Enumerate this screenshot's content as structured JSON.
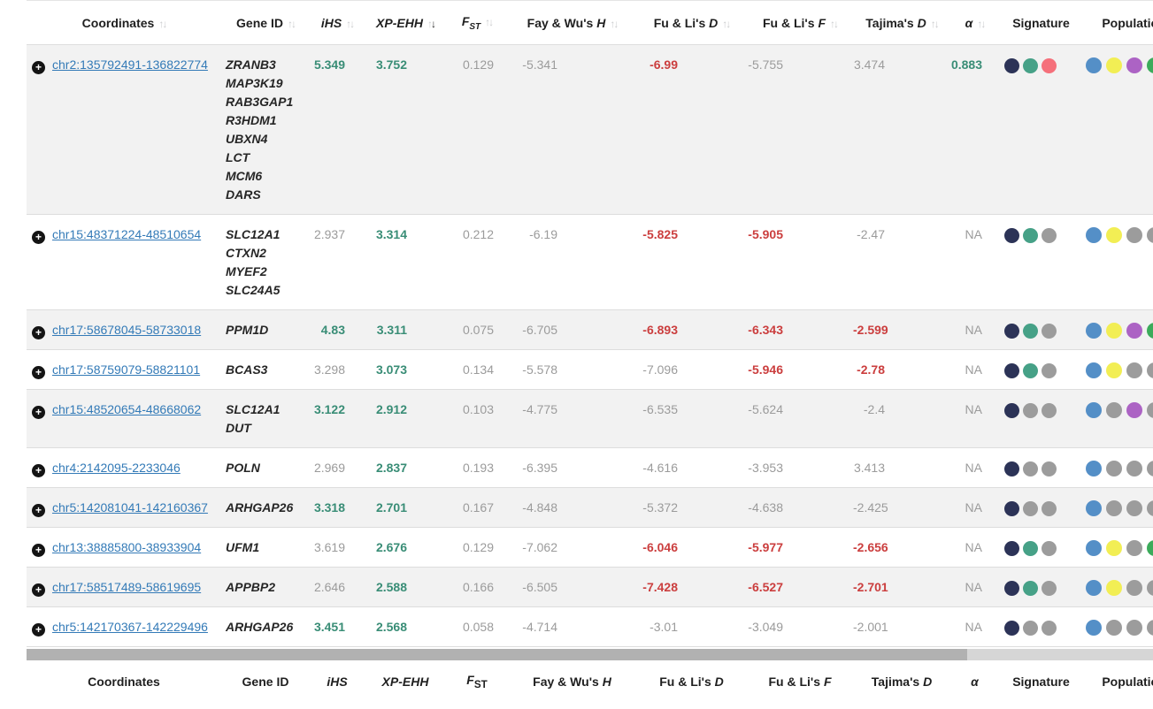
{
  "table": {
    "sort": {
      "column": "XP-EHH",
      "direction": "descending"
    },
    "columns": [
      {
        "id": "coordinates",
        "text": "Coordinates",
        "sortable": true
      },
      {
        "id": "gene",
        "text": "Gene ID",
        "sortable": true
      },
      {
        "id": "ihs",
        "italic": "iHS",
        "sortable": true
      },
      {
        "id": "xpehh",
        "italic": "XP-EHH",
        "sortable": true,
        "sort": "desc"
      },
      {
        "id": "fst",
        "italic": "F",
        "sub": "ST",
        "sortable": true
      },
      {
        "id": "fayh",
        "text": "Fay & Wu's ",
        "italic": "H",
        "sortable": true
      },
      {
        "id": "fulid",
        "text": "Fu & Li's ",
        "italic": "D",
        "sortable": true
      },
      {
        "id": "fulif",
        "text": "Fu & Li's ",
        "italic": "F",
        "sortable": true
      },
      {
        "id": "tajd",
        "text": "Tajima's ",
        "italic": "D",
        "sortable": true
      },
      {
        "id": "alpha",
        "italic": "α",
        "sortable": true
      },
      {
        "id": "signature",
        "text": "Signature",
        "sortable": false
      },
      {
        "id": "population",
        "text": "Population",
        "sortable": false
      }
    ],
    "expand_icon": "+",
    "rows": [
      {
        "coordinates": "chr2:135792491-136822774",
        "genes": [
          "ZRANB3",
          "MAP3K19",
          "RAB3GAP1",
          "R3HDM1",
          "UBXN4",
          "LCT",
          "MCM6",
          "DARS"
        ],
        "stats": [
          {
            "v": "5.349",
            "c": "green"
          },
          {
            "v": "3.752",
            "c": "green"
          },
          {
            "v": "0.129",
            "c": "gray"
          },
          {
            "v": "-5.341",
            "c": "gray"
          },
          {
            "v": "-6.99",
            "c": "red"
          },
          {
            "v": "-5.755",
            "c": "gray"
          },
          {
            "v": "3.474",
            "c": "gray"
          },
          {
            "v": "0.883",
            "c": "green"
          }
        ],
        "signature": [
          "navy",
          "teal",
          "pink"
        ],
        "population": [
          "blue",
          "yellow",
          "purple",
          "green"
        ]
      },
      {
        "coordinates": "chr15:48371224-48510654",
        "genes": [
          "SLC12A1",
          "CTXN2",
          "MYEF2",
          "SLC24A5"
        ],
        "stats": [
          {
            "v": "2.937",
            "c": "gray"
          },
          {
            "v": "3.314",
            "c": "green"
          },
          {
            "v": "0.212",
            "c": "gray"
          },
          {
            "v": "-6.19",
            "c": "gray"
          },
          {
            "v": "-5.825",
            "c": "red"
          },
          {
            "v": "-5.905",
            "c": "red"
          },
          {
            "v": "-2.47",
            "c": "gray"
          },
          {
            "v": "NA",
            "c": "gray"
          }
        ],
        "signature": [
          "navy",
          "teal",
          "gray"
        ],
        "population": [
          "blue",
          "yellow",
          "gray",
          "gray"
        ]
      },
      {
        "coordinates": "chr17:58678045-58733018",
        "genes": [
          "PPM1D"
        ],
        "stats": [
          {
            "v": "4.83",
            "c": "green"
          },
          {
            "v": "3.311",
            "c": "green"
          },
          {
            "v": "0.075",
            "c": "gray"
          },
          {
            "v": "-6.705",
            "c": "gray"
          },
          {
            "v": "-6.893",
            "c": "red"
          },
          {
            "v": "-6.343",
            "c": "red"
          },
          {
            "v": "-2.599",
            "c": "red"
          },
          {
            "v": "NA",
            "c": "gray"
          }
        ],
        "signature": [
          "navy",
          "teal",
          "gray"
        ],
        "population": [
          "blue",
          "yellow",
          "purple",
          "green"
        ]
      },
      {
        "coordinates": "chr17:58759079-58821101",
        "genes": [
          "BCAS3"
        ],
        "stats": [
          {
            "v": "3.298",
            "c": "gray"
          },
          {
            "v": "3.073",
            "c": "green"
          },
          {
            "v": "0.134",
            "c": "gray"
          },
          {
            "v": "-5.578",
            "c": "gray"
          },
          {
            "v": "-7.096",
            "c": "gray"
          },
          {
            "v": "-5.946",
            "c": "red"
          },
          {
            "v": "-2.78",
            "c": "red"
          },
          {
            "v": "NA",
            "c": "gray"
          }
        ],
        "signature": [
          "navy",
          "teal",
          "gray"
        ],
        "population": [
          "blue",
          "yellow",
          "gray",
          "gray"
        ]
      },
      {
        "coordinates": "chr15:48520654-48668062",
        "genes": [
          "SLC12A1",
          "DUT"
        ],
        "stats": [
          {
            "v": "3.122",
            "c": "green"
          },
          {
            "v": "2.912",
            "c": "green"
          },
          {
            "v": "0.103",
            "c": "gray"
          },
          {
            "v": "-4.775",
            "c": "gray"
          },
          {
            "v": "-6.535",
            "c": "gray"
          },
          {
            "v": "-5.624",
            "c": "gray"
          },
          {
            "v": "-2.4",
            "c": "gray"
          },
          {
            "v": "NA",
            "c": "gray"
          }
        ],
        "signature": [
          "navy",
          "gray",
          "gray"
        ],
        "population": [
          "blue",
          "gray",
          "purple",
          "gray"
        ]
      },
      {
        "coordinates": "chr4:2142095-2233046",
        "genes": [
          "POLN"
        ],
        "stats": [
          {
            "v": "2.969",
            "c": "gray"
          },
          {
            "v": "2.837",
            "c": "green"
          },
          {
            "v": "0.193",
            "c": "gray"
          },
          {
            "v": "-6.395",
            "c": "gray"
          },
          {
            "v": "-4.616",
            "c": "gray"
          },
          {
            "v": "-3.953",
            "c": "gray"
          },
          {
            "v": "3.413",
            "c": "gray"
          },
          {
            "v": "NA",
            "c": "gray"
          }
        ],
        "signature": [
          "navy",
          "gray",
          "gray"
        ],
        "population": [
          "blue",
          "gray",
          "gray",
          "gray"
        ]
      },
      {
        "coordinates": "chr5:142081041-142160367",
        "genes": [
          "ARHGAP26"
        ],
        "stats": [
          {
            "v": "3.318",
            "c": "green"
          },
          {
            "v": "2.701",
            "c": "green"
          },
          {
            "v": "0.167",
            "c": "gray"
          },
          {
            "v": "-4.848",
            "c": "gray"
          },
          {
            "v": "-5.372",
            "c": "gray"
          },
          {
            "v": "-4.638",
            "c": "gray"
          },
          {
            "v": "-2.425",
            "c": "gray"
          },
          {
            "v": "NA",
            "c": "gray"
          }
        ],
        "signature": [
          "navy",
          "gray",
          "gray"
        ],
        "population": [
          "blue",
          "gray",
          "gray",
          "gray"
        ]
      },
      {
        "coordinates": "chr13:38885800-38933904",
        "genes": [
          "UFM1"
        ],
        "stats": [
          {
            "v": "3.619",
            "c": "gray"
          },
          {
            "v": "2.676",
            "c": "green"
          },
          {
            "v": "0.129",
            "c": "gray"
          },
          {
            "v": "-7.062",
            "c": "gray"
          },
          {
            "v": "-6.046",
            "c": "red"
          },
          {
            "v": "-5.977",
            "c": "red"
          },
          {
            "v": "-2.656",
            "c": "red"
          },
          {
            "v": "NA",
            "c": "gray"
          }
        ],
        "signature": [
          "navy",
          "teal",
          "gray"
        ],
        "population": [
          "blue",
          "yellow",
          "gray",
          "green"
        ]
      },
      {
        "coordinates": "chr17:58517489-58619695",
        "genes": [
          "APPBP2"
        ],
        "stats": [
          {
            "v": "2.646",
            "c": "gray"
          },
          {
            "v": "2.588",
            "c": "green"
          },
          {
            "v": "0.166",
            "c": "gray"
          },
          {
            "v": "-6.505",
            "c": "gray"
          },
          {
            "v": "-7.428",
            "c": "red"
          },
          {
            "v": "-6.527",
            "c": "red"
          },
          {
            "v": "-2.701",
            "c": "red"
          },
          {
            "v": "NA",
            "c": "gray"
          }
        ],
        "signature": [
          "navy",
          "teal",
          "gray"
        ],
        "population": [
          "blue",
          "yellow",
          "gray",
          "gray"
        ]
      },
      {
        "coordinates": "chr5:142170367-142229496",
        "genes": [
          "ARHGAP26"
        ],
        "stats": [
          {
            "v": "3.451",
            "c": "green"
          },
          {
            "v": "2.568",
            "c": "green"
          },
          {
            "v": "0.058",
            "c": "gray"
          },
          {
            "v": "-4.714",
            "c": "gray"
          },
          {
            "v": "-3.01",
            "c": "gray"
          },
          {
            "v": "-3.049",
            "c": "gray"
          },
          {
            "v": "-2.001",
            "c": "gray"
          },
          {
            "v": "NA",
            "c": "gray"
          }
        ],
        "signature": [
          "navy",
          "gray",
          "gray"
        ],
        "population": [
          "blue",
          "gray",
          "gray",
          "gray"
        ]
      }
    ]
  },
  "value_colors": {
    "green": "#398d76",
    "red": "#cb3e3e",
    "gray": "#9b9b9b"
  },
  "dot_colors": {
    "navy": "#2c3357",
    "teal": "#46a187",
    "pink": "#f5707b",
    "gray": "#9c9c9c",
    "blue": "#548fc7",
    "yellow": "#f2ee54",
    "purple": "#ac63c4",
    "green": "#3cab5b"
  },
  "link_color": "#337ab7"
}
